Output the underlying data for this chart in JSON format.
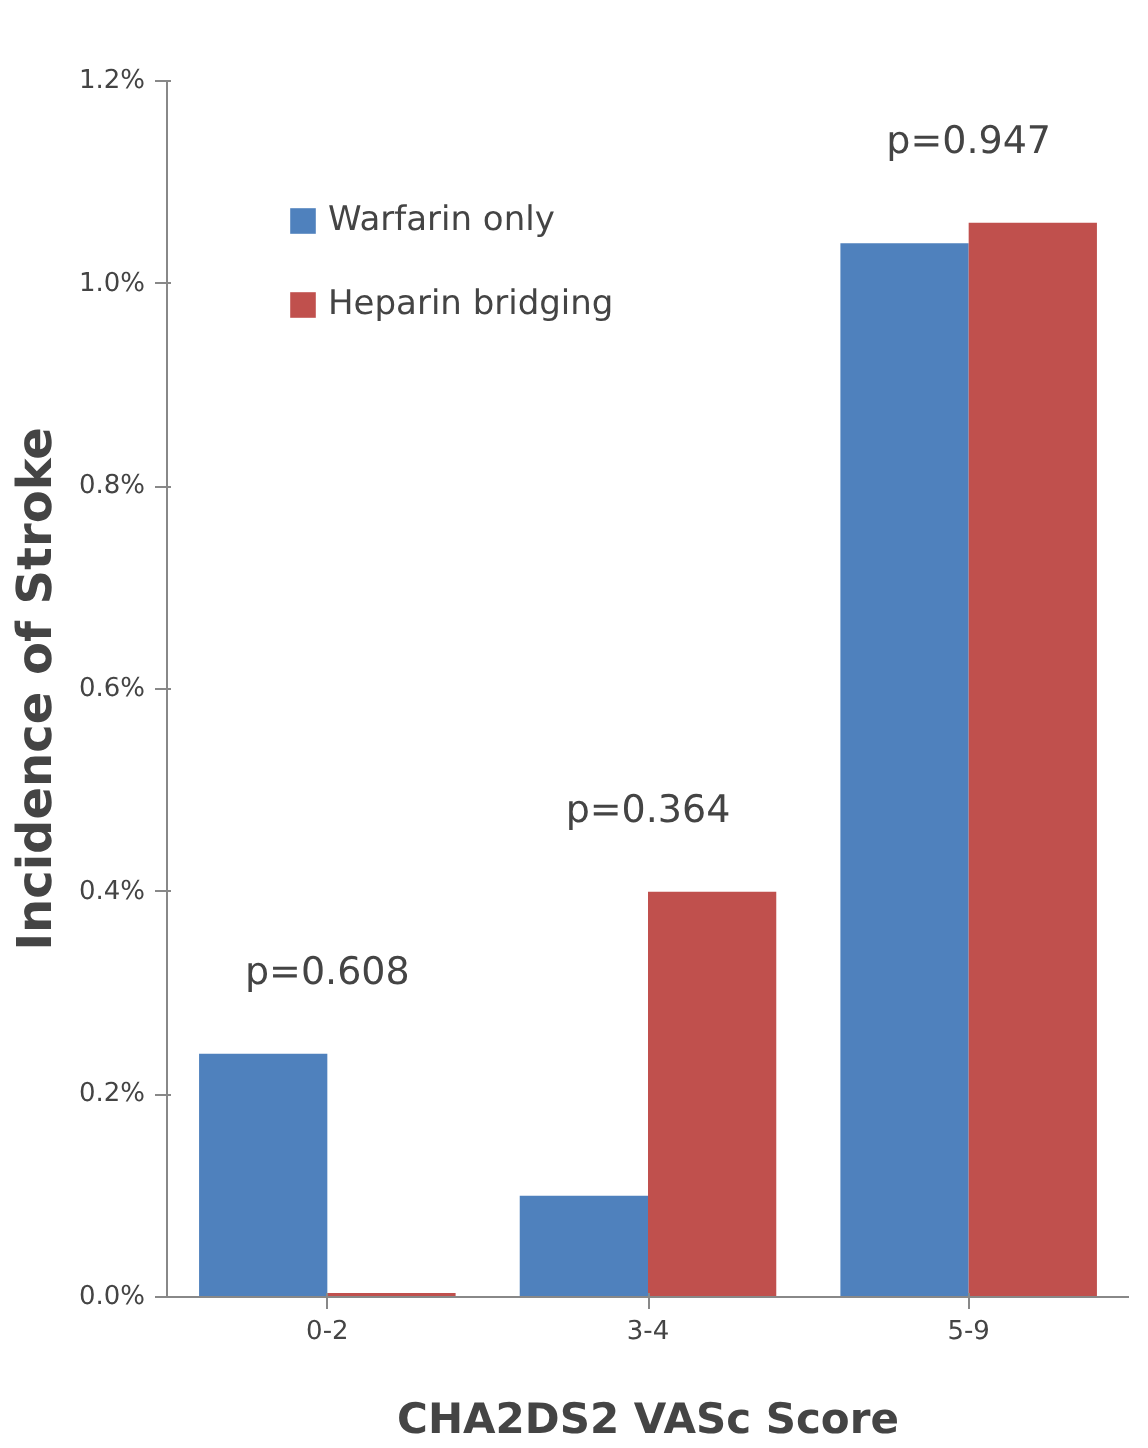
{
  "chart_data": {
    "type": "bar",
    "xlabel": "CHA2DS2 VASc Score",
    "ylabel": "Incidence of Stroke",
    "categories": [
      "0-2",
      "3-4",
      "5-9"
    ],
    "series": [
      {
        "name": "Warfarin only",
        "color": "#4f81bd",
        "values": [
          0.24,
          0.1,
          1.04
        ]
      },
      {
        "name": "Heparin bridging",
        "color": "#c0504d",
        "values": [
          0.004,
          0.4,
          1.06
        ]
      }
    ],
    "ylim": [
      0,
      1.2
    ],
    "yticks": [
      {
        "value": 0,
        "label": "0.0%"
      },
      {
        "value": 0.2,
        "label": "0.2%"
      },
      {
        "value": 0.4,
        "label": "0.4%"
      },
      {
        "value": 0.6,
        "label": "0.6%"
      },
      {
        "value": 0.8,
        "label": "0.8%"
      },
      {
        "value": 1.0,
        "label": "1.0%"
      },
      {
        "value": 1.2,
        "label": "1.2%"
      }
    ],
    "grid": false,
    "legend": "top left",
    "annotations": [
      "p=0.608",
      "p=0.364",
      "p=0.947"
    ]
  }
}
